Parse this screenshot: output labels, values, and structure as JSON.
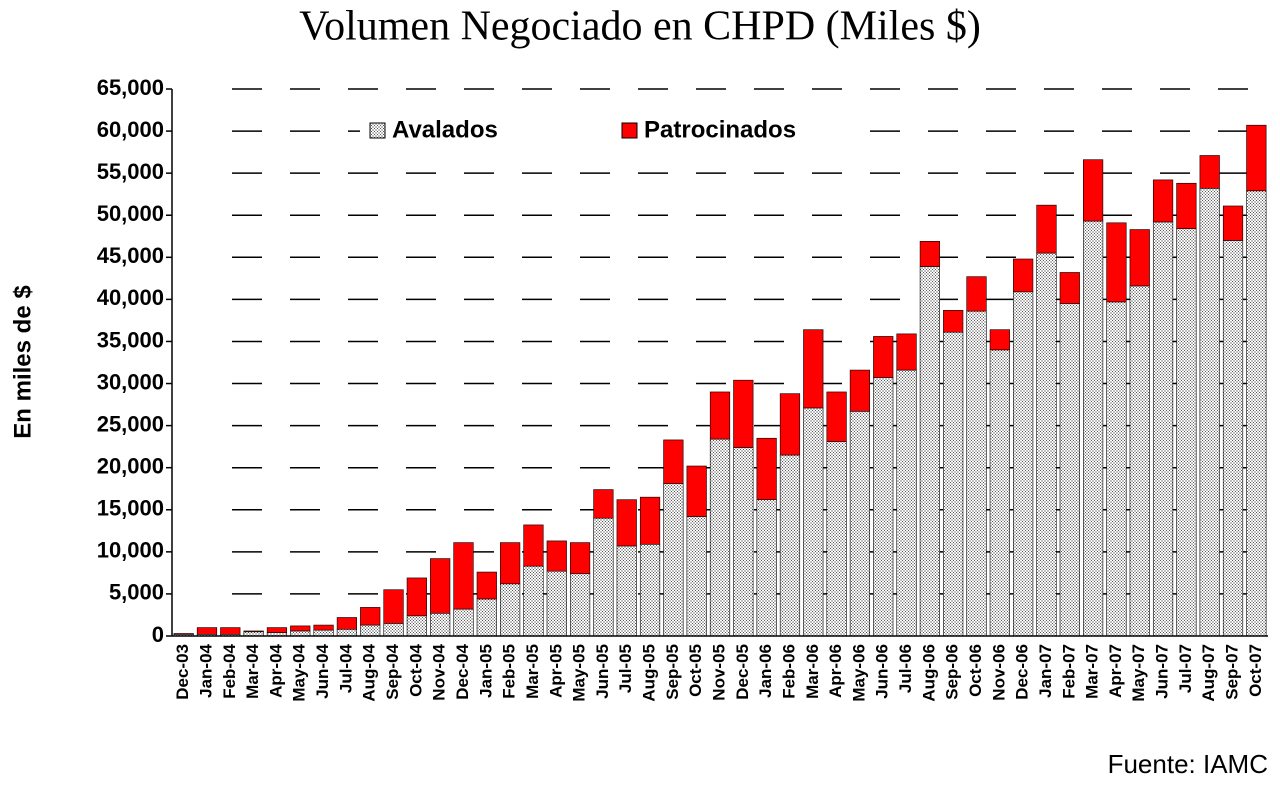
{
  "chart_data": {
    "type": "stacked_bar",
    "title": "Volumen Negociado en CHPD (Miles $)",
    "y_label": "En miles de $",
    "source": "Fuente: IAMC",
    "categories": [
      "Dec-03",
      "Jan-04",
      "Feb-04",
      "Mar-04",
      "Apr-04",
      "May-04",
      "Jun-04",
      "Jul-04",
      "Aug-04",
      "Sep-04",
      "Oct-04",
      "Nov-04",
      "Dec-04",
      "Jan-05",
      "Feb-05",
      "Mar-05",
      "Apr-05",
      "May-05",
      "Jun-05",
      "Jul-05",
      "Aug-05",
      "Sep-05",
      "Oct-05",
      "Nov-05",
      "Dec-05",
      "Jan-06",
      "Feb-06",
      "Mar-06",
      "Apr-06",
      "May-06",
      "Jun-06",
      "Jul-06",
      "Aug-06",
      "Sep-06",
      "Oct-06",
      "Nov-06",
      "Dec-06",
      "Jan-07",
      "Feb-07",
      "Mar-07",
      "Apr-07",
      "May-07",
      "Jun-07",
      "Jul-07",
      "Aug-07",
      "Sep-07",
      "Oct-07"
    ],
    "series": [
      {
        "name": "Avalados",
        "color": "#bfbfbf",
        "values": [
          200,
          200,
          200,
          500,
          400,
          600,
          700,
          800,
          1300,
          1500,
          2400,
          2700,
          3200,
          4400,
          6200,
          8300,
          7700,
          7400,
          14000,
          10700,
          10900,
          18100,
          14200,
          23400,
          22400,
          16200,
          21500,
          27100,
          23100,
          26700,
          30700,
          31600,
          43900,
          36100,
          38600,
          34000,
          40900,
          45500,
          39500,
          49300,
          39700,
          41600,
          49200,
          48400,
          53200,
          47000,
          52900
        ]
      },
      {
        "name": "Patrocinados",
        "color": "#ff0000",
        "values": [
          100,
          800,
          800,
          100,
          600,
          600,
          600,
          1400,
          2100,
          4000,
          4500,
          6500,
          7900,
          3200,
          4900,
          4900,
          3600,
          3700,
          3400,
          5500,
          5600,
          5200,
          6000,
          5600,
          8000,
          7300,
          7300,
          9300,
          5900,
          4900,
          4900,
          4300,
          3000,
          2600,
          4100,
          2400,
          3900,
          5700,
          3700,
          7300,
          9400,
          6700,
          5000,
          5400,
          3900,
          4100,
          7800
        ]
      }
    ],
    "ylim": [
      0,
      65000
    ],
    "yticks": [
      0,
      {
        "value": 5000,
        "label": "5,000"
      },
      {
        "value": 10000,
        "label": "10,000"
      },
      {
        "value": 15000,
        "label": "15,000"
      },
      {
        "value": 20000,
        "label": "20,000"
      },
      {
        "value": 25000,
        "label": "25,000"
      },
      {
        "value": 30000,
        "label": "30,000"
      },
      {
        "value": 35000,
        "label": "35,000"
      },
      {
        "value": 40000,
        "label": "40,000"
      },
      {
        "value": 45000,
        "label": "45,000"
      },
      {
        "value": 50000,
        "label": "50,000"
      },
      {
        "value": 55000,
        "label": "55,000"
      },
      {
        "value": 60000,
        "label": "60,000"
      },
      {
        "value": 65000,
        "label": "65,000"
      }
    ],
    "grid": true
  }
}
